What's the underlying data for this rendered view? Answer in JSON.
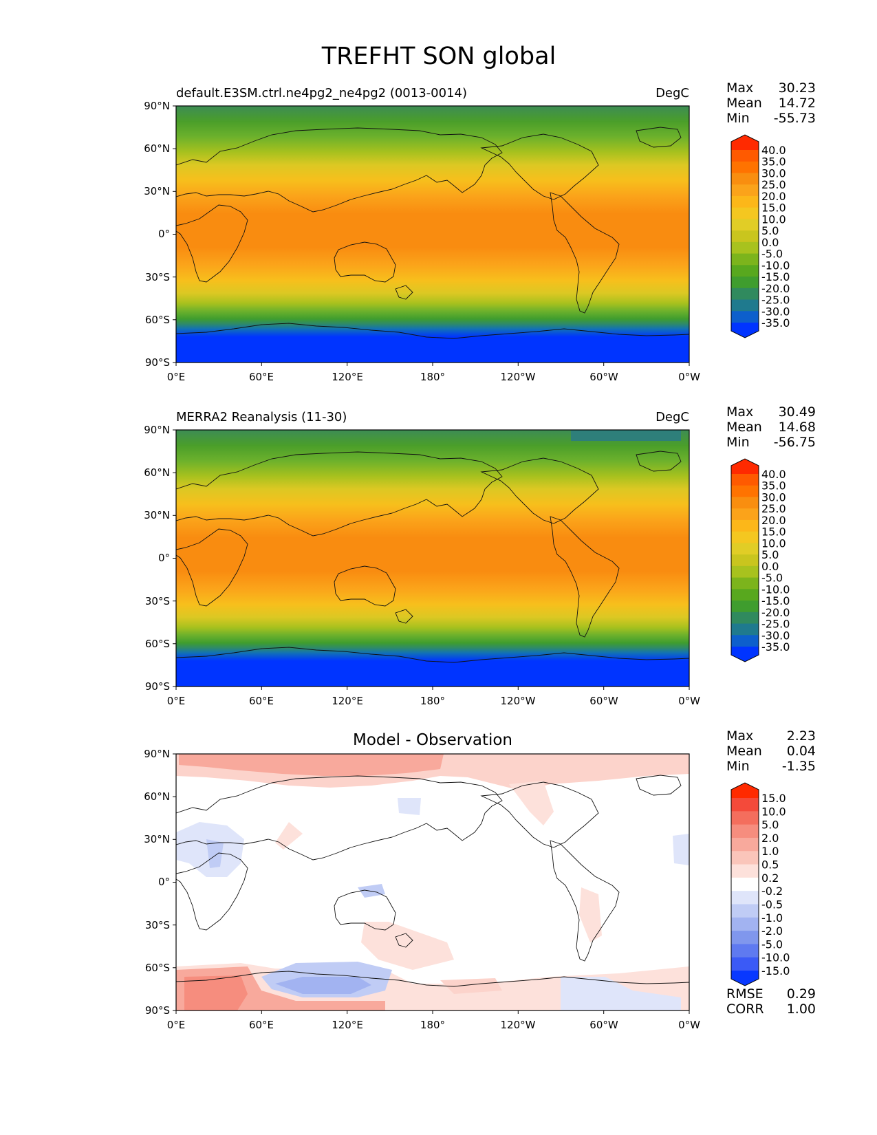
{
  "figure_title": "TREFHT SON global",
  "panels": [
    {
      "id": "test",
      "title_left": "default.E3SM.ctrl.ne4pg2_ne4pg2 (0013-0014)",
      "title_right": "DegC",
      "title_center": "",
      "stats": {
        "max_label": "Max",
        "max": "30.23",
        "mean_label": "Mean",
        "mean": "14.72",
        "min_label": "Min",
        "min": "-55.73"
      }
    },
    {
      "id": "reference",
      "title_left": "MERRA2 Reanalysis (11-30)",
      "title_right": "DegC",
      "title_center": "",
      "stats": {
        "max_label": "Max",
        "max": "30.49",
        "mean_label": "Mean",
        "mean": "14.68",
        "min_label": "Min",
        "min": "-56.75"
      }
    },
    {
      "id": "difference",
      "title_left": "",
      "title_right": "",
      "title_center": "Model - Observation",
      "stats": {
        "max_label": "Max",
        "max": "2.23",
        "mean_label": "Mean",
        "mean": "0.04",
        "min_label": "Min",
        "min": "-1.35"
      }
    }
  ],
  "metrics": {
    "rmse_label": "RMSE",
    "rmse": "0.29",
    "corr_label": "CORR",
    "corr": "1.00"
  },
  "map_axes": {
    "lat_ticks": [
      "90°N",
      "60°N",
      "30°N",
      "0°",
      "30°S",
      "60°S",
      "90°S"
    ],
    "lon_ticks": [
      "0°E",
      "60°E",
      "120°E",
      "180°",
      "120°W",
      "60°W",
      "0°W"
    ]
  },
  "colorbars": {
    "temperature": {
      "levels": [
        "40.0",
        "35.0",
        "30.0",
        "25.0",
        "20.0",
        "15.0",
        "10.0",
        "5.0",
        "0.0",
        "-5.0",
        "-10.0",
        "-15.0",
        "-20.0",
        "-25.0",
        "-30.0",
        "-35.0"
      ],
      "colors": [
        "#ff2a00",
        "#ff5a00",
        "#ff7300",
        "#f98e0f",
        "#fba31a",
        "#fcb719",
        "#f4c720",
        "#e1cd26",
        "#c9c51e",
        "#a8c21e",
        "#7cb41c",
        "#58a81e",
        "#3f9d2e",
        "#308a5e",
        "#1f7a8e",
        "#0d5fcc",
        "#0034ff"
      ]
    },
    "difference": {
      "levels": [
        "15.0",
        "10.0",
        "5.0",
        "2.0",
        "1.0",
        "0.5",
        "0.2",
        "-0.2",
        "-0.5",
        "-1.0",
        "-2.0",
        "-5.0",
        "-10.0",
        "-15.0"
      ],
      "colors": [
        "#ff2a00",
        "#f44a3a",
        "#f46e5d",
        "#f68d7e",
        "#f8a99c",
        "#fac5ba",
        "#fde1db",
        "#ffffff",
        "#dfe5fa",
        "#c0ccf5",
        "#a2b3f1",
        "#8097ed",
        "#5f7af0",
        "#3b5af6",
        "#0838ff"
      ]
    }
  }
}
